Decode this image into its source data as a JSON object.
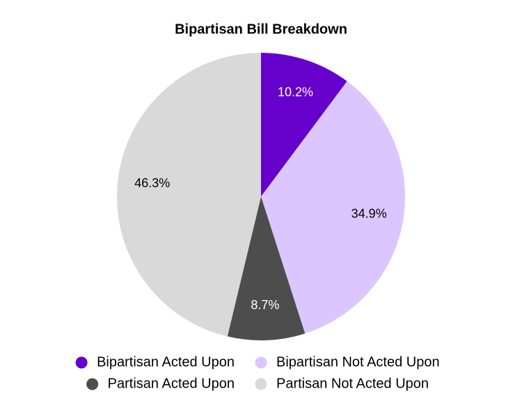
{
  "chart_data": {
    "type": "pie",
    "title": "Bipartisan Bill Breakdown",
    "categories": [
      "Bipartisan Acted Upon",
      "Bipartisan Not Acted Upon",
      "Partisan Acted Upon",
      "Partisan Not Acted Upon"
    ],
    "values": [
      10.2,
      34.9,
      8.7,
      46.3
    ],
    "value_labels": [
      "10.2%",
      "34.9%",
      "8.7%",
      "46.3%"
    ],
    "colors": [
      "#6600cc",
      "#dcc6ff",
      "#4d4d4d",
      "#d9d9d9"
    ],
    "legend": "bottom"
  }
}
